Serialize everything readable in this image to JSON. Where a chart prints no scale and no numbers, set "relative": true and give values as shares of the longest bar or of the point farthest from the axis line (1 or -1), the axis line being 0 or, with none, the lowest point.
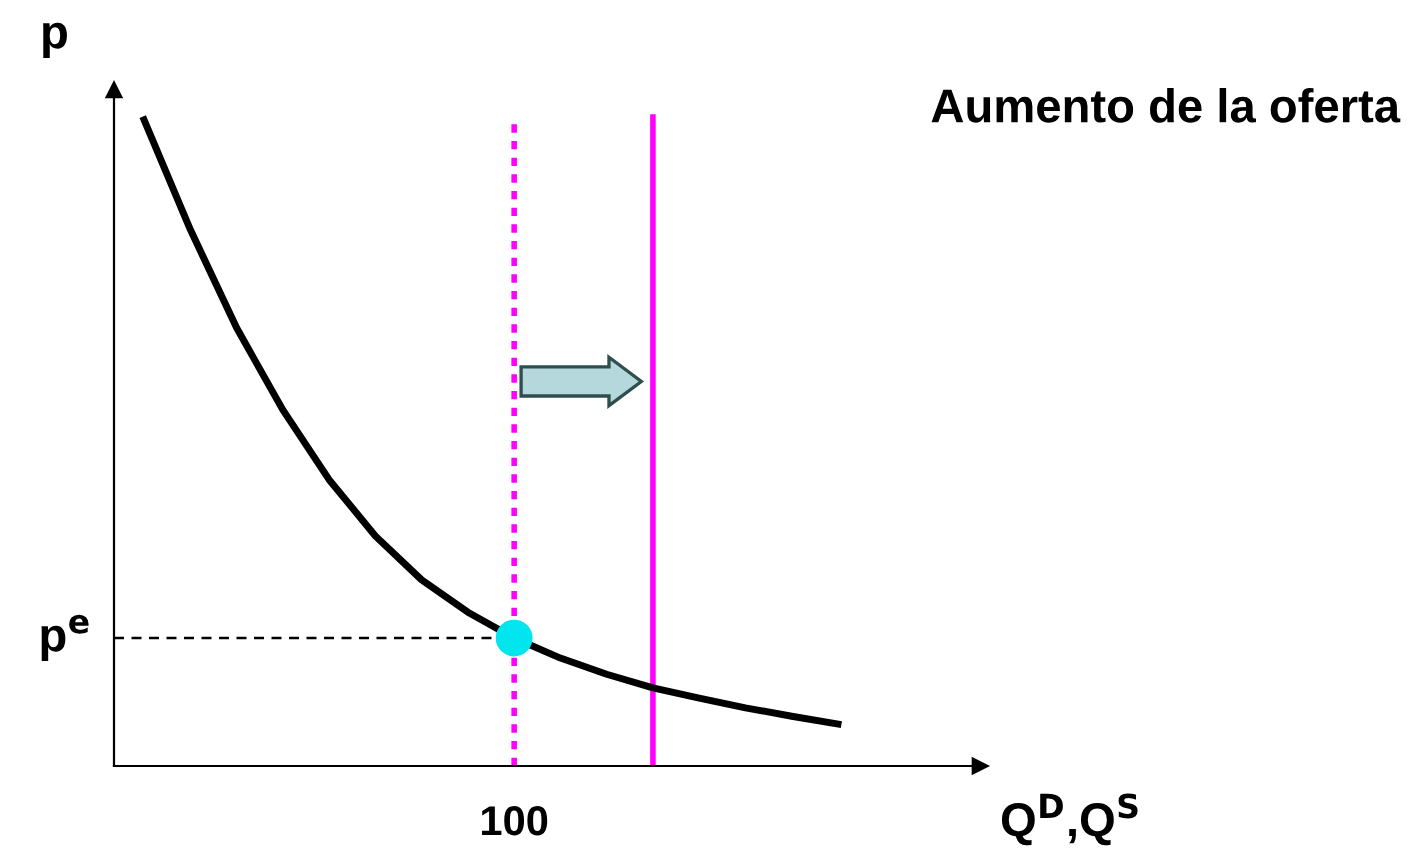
{
  "chart_data": {
    "type": "line",
    "title": "Aumento de la oferta",
    "xlabel": "Q$^{D}$,Q$^{S}$",
    "ylabel": "p",
    "relative": true,
    "legend": false,
    "categories": [
      null,
      null,
      null,
      null,
      null,
      null,
      null,
      null,
      null,
      null,
      null,
      null,
      null,
      null,
      null,
      null
    ],
    "series": [
      {
        "color": "#000000",
        "line_style": "solid",
        "marker": "none",
        "values": [
          1,
          0.83,
          0.678,
          0.551,
          0.443,
          0.356,
          0.288,
          0.238,
          0.198,
          0.167,
          0.142,
          0.121,
          0.105,
          0.09,
          0.077,
          0.065
        ]
      }
    ],
    "ref_lines": [
      {
        "axis": "y",
        "value": 0.198,
        "label": "p$^{e}$",
        "color": "#000000",
        "line_style": "dashed"
      }
    ],
    "annotations": [
      "100"
    ]
  }
}
